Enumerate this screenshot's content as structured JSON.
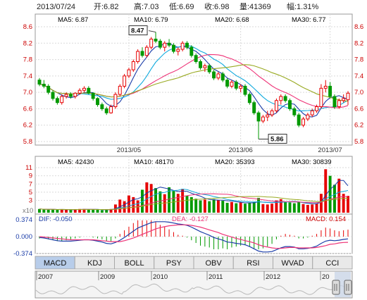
{
  "header": {
    "date": "2013/07/24",
    "open": "开:6.82",
    "high": "高:7.03",
    "low": "低:6.69",
    "close": "收:6.98",
    "volume": "量:41369",
    "change": "幅:1.31%"
  },
  "colors": {
    "up": "#e60000",
    "down": "#009900",
    "ma5": "#1a3ca8",
    "ma10": "#11aadd",
    "ma20": "#ee3377",
    "ma30": "#99aa22",
    "axis_price": "#cc0000",
    "axis_macd": "#1a3ca8"
  },
  "price_panel": {
    "legend": [
      {
        "label": "MA5: 6.87",
        "color": "#1a3ca8"
      },
      {
        "label": "MA10: 6.79",
        "color": "#11aadd"
      },
      {
        "label": "MA20: 6.68",
        "color": "#ee3377"
      },
      {
        "label": "MA30: 6.77",
        "color": "#99aa22"
      }
    ],
    "annotations": {
      "high": "8.47",
      "low": "5.86"
    }
  },
  "volume_panel": {
    "legend": [
      {
        "label": "MA5: 42430",
        "color": "#1a3ca8"
      },
      {
        "label": "MA10: 48170",
        "color": "#11aadd"
      },
      {
        "label": "MA20: 35393",
        "color": "#ee3377"
      },
      {
        "label": "MA30: 30839",
        "color": "#99aa22"
      }
    ]
  },
  "macd_panel": {
    "dif": "DIF: -0.050",
    "dea": "DEA: -0.127",
    "macd": "MACD: 0.154",
    "x_unit": "x10"
  },
  "tabs": [
    "MACD",
    "KDJ",
    "BOLL",
    "PSY",
    "OBV",
    "RSI",
    "WVAD",
    "CCI"
  ],
  "active_tab": "MACD",
  "navigator": {
    "years": [
      "2007",
      "2009",
      "2010",
      "2011",
      "2012",
      "20"
    ]
  },
  "chart_data": [
    {
      "type": "candlestick",
      "title": "",
      "xlabel": "",
      "ylabel": "",
      "x_tick_labels": [
        "2013/05",
        "2013/06",
        "2013/07"
      ],
      "y_tick_labels": [
        "8.6",
        "8.2",
        "7.8",
        "7.4",
        "7.0",
        "6.6",
        "6.2",
        "5.8"
      ],
      "ylim": [
        5.8,
        8.6
      ],
      "grid": true,
      "ohlc": [
        [
          7.3,
          7.35,
          7.15,
          7.2
        ],
        [
          7.2,
          7.3,
          7.1,
          7.15
        ],
        [
          7.15,
          7.2,
          6.95,
          7.0
        ],
        [
          7.0,
          7.05,
          6.8,
          6.85
        ],
        [
          6.85,
          6.9,
          6.7,
          6.75
        ],
        [
          6.75,
          6.95,
          6.7,
          6.9
        ],
        [
          6.9,
          7.0,
          6.85,
          6.95
        ],
        [
          6.95,
          7.0,
          6.85,
          6.9
        ],
        [
          6.9,
          7.0,
          6.85,
          6.98
        ],
        [
          6.98,
          7.1,
          6.95,
          7.05
        ],
        [
          7.05,
          7.15,
          7.0,
          7.1
        ],
        [
          7.1,
          7.15,
          6.95,
          6.98
        ],
        [
          6.98,
          7.0,
          6.8,
          6.85
        ],
        [
          6.85,
          6.88,
          6.65,
          6.7
        ],
        [
          6.7,
          6.75,
          6.55,
          6.6
        ],
        [
          6.6,
          6.65,
          6.45,
          6.5
        ],
        [
          6.5,
          6.7,
          6.48,
          6.65
        ],
        [
          6.65,
          7.0,
          6.6,
          6.95
        ],
        [
          6.95,
          7.2,
          6.9,
          7.15
        ],
        [
          7.15,
          7.45,
          7.1,
          7.4
        ],
        [
          7.4,
          7.6,
          7.35,
          7.55
        ],
        [
          7.55,
          7.8,
          7.5,
          7.75
        ],
        [
          7.75,
          8.05,
          7.7,
          8.0
        ],
        [
          8.0,
          8.1,
          7.85,
          7.9
        ],
        [
          7.9,
          8.15,
          7.85,
          8.1
        ],
        [
          8.1,
          8.35,
          8.05,
          8.3
        ],
        [
          8.3,
          8.47,
          8.2,
          8.25
        ],
        [
          8.25,
          8.3,
          8.05,
          8.1
        ],
        [
          8.1,
          8.25,
          8.0,
          8.2
        ],
        [
          8.2,
          8.3,
          8.1,
          8.15
        ],
        [
          8.15,
          8.2,
          7.95,
          8.0
        ],
        [
          8.0,
          8.1,
          7.9,
          8.05
        ],
        [
          8.05,
          8.25,
          8.0,
          8.2
        ],
        [
          8.2,
          8.25,
          8.05,
          8.1
        ],
        [
          8.1,
          8.15,
          7.85,
          7.9
        ],
        [
          7.9,
          7.95,
          7.7,
          7.75
        ],
        [
          7.75,
          7.8,
          7.55,
          7.6
        ],
        [
          7.6,
          7.7,
          7.5,
          7.65
        ],
        [
          7.65,
          7.7,
          7.45,
          7.5
        ],
        [
          7.5,
          7.55,
          7.3,
          7.35
        ],
        [
          7.35,
          7.5,
          7.3,
          7.45
        ],
        [
          7.45,
          7.5,
          7.25,
          7.3
        ],
        [
          7.3,
          7.35,
          7.1,
          7.15
        ],
        [
          7.15,
          7.3,
          7.1,
          7.25
        ],
        [
          7.25,
          7.3,
          7.05,
          7.1
        ],
        [
          7.1,
          7.2,
          7.0,
          7.15
        ],
        [
          7.15,
          7.2,
          6.9,
          6.95
        ],
        [
          6.95,
          7.0,
          6.7,
          6.75
        ],
        [
          6.75,
          6.8,
          6.45,
          6.5
        ],
        [
          6.5,
          6.55,
          5.86,
          6.3
        ],
        [
          6.3,
          6.45,
          6.25,
          6.4
        ],
        [
          6.4,
          6.55,
          6.3,
          6.45
        ],
        [
          6.45,
          6.6,
          6.4,
          6.55
        ],
        [
          6.55,
          6.85,
          6.5,
          6.8
        ],
        [
          6.8,
          6.95,
          6.7,
          6.9
        ],
        [
          6.9,
          6.95,
          6.75,
          6.8
        ],
        [
          6.8,
          6.85,
          6.55,
          6.6
        ],
        [
          6.6,
          6.65,
          6.4,
          6.45
        ],
        [
          6.45,
          6.5,
          6.15,
          6.2
        ],
        [
          6.2,
          6.4,
          6.15,
          6.35
        ],
        [
          6.35,
          6.5,
          6.3,
          6.45
        ],
        [
          6.45,
          6.6,
          6.4,
          6.55
        ],
        [
          6.55,
          6.7,
          6.5,
          6.65
        ],
        [
          6.65,
          7.2,
          6.6,
          7.1
        ],
        [
          7.1,
          7.3,
          7.0,
          7.15
        ],
        [
          7.15,
          7.25,
          6.85,
          6.9
        ],
        [
          6.9,
          6.95,
          6.6,
          6.65
        ],
        [
          6.65,
          6.85,
          6.6,
          6.8
        ],
        [
          6.8,
          6.95,
          6.75,
          6.85
        ],
        [
          6.82,
          7.03,
          6.69,
          6.98
        ]
      ]
    },
    {
      "type": "bar",
      "title": "",
      "y_tick_labels": [
        "11",
        "9",
        "7",
        "5",
        "3"
      ],
      "ylim": [
        0,
        11
      ],
      "grid": true,
      "volumes": [
        0.9,
        0.8,
        0.7,
        0.8,
        0.7,
        0.8,
        0.7,
        0.7,
        0.8,
        0.9,
        0.9,
        0.8,
        0.7,
        0.7,
        0.6,
        0.7,
        0.9,
        2.0,
        3.2,
        2.8,
        4.2,
        3.8,
        3.0,
        5.6,
        7.4,
        7.0,
        6.0,
        5.2,
        4.5,
        6.2,
        5.3,
        4.6,
        5.8,
        4.2,
        3.8,
        3.4,
        3.0,
        3.2,
        2.8,
        3.3,
        3.1,
        2.9,
        2.4,
        2.6,
        2.3,
        2.5,
        2.2,
        2.4,
        2.6,
        3.6,
        2.1,
        2.0,
        2.2,
        3.0,
        3.3,
        2.6,
        2.5,
        2.3,
        2.6,
        2.1,
        1.9,
        2.0,
        2.2,
        4.6,
        10.6,
        9.0,
        6.8,
        8.3,
        4.6,
        4.1
      ]
    },
    {
      "type": "bar",
      "title": "",
      "y_tick_labels": [
        "0.374",
        "0.000",
        "-0.374"
      ],
      "ylim": [
        -0.45,
        0.45
      ],
      "grid": true,
      "dif": [
        -0.02,
        -0.03,
        -0.05,
        -0.07,
        -0.09,
        -0.1,
        -0.1,
        -0.1,
        -0.09,
        -0.08,
        -0.07,
        -0.07,
        -0.08,
        -0.1,
        -0.12,
        -0.15,
        -0.16,
        -0.13,
        -0.08,
        -0.02,
        0.05,
        0.12,
        0.19,
        0.23,
        0.27,
        0.31,
        0.33,
        0.33,
        0.33,
        0.32,
        0.3,
        0.28,
        0.27,
        0.25,
        0.21,
        0.16,
        0.11,
        0.07,
        0.03,
        -0.02,
        -0.05,
        -0.08,
        -0.12,
        -0.13,
        -0.15,
        -0.16,
        -0.18,
        -0.22,
        -0.27,
        -0.32,
        -0.34,
        -0.34,
        -0.33,
        -0.29,
        -0.25,
        -0.22,
        -0.22,
        -0.23,
        -0.27,
        -0.27,
        -0.26,
        -0.24,
        -0.21,
        -0.15,
        -0.1,
        -0.08,
        -0.09,
        -0.08,
        -0.06,
        -0.05
      ],
      "dea": [
        0.0,
        -0.01,
        -0.02,
        -0.03,
        -0.04,
        -0.05,
        -0.06,
        -0.07,
        -0.07,
        -0.07,
        -0.07,
        -0.07,
        -0.07,
        -0.08,
        -0.09,
        -0.1,
        -0.11,
        -0.11,
        -0.11,
        -0.09,
        -0.06,
        -0.03,
        0.01,
        0.05,
        0.09,
        0.13,
        0.17,
        0.2,
        0.22,
        0.24,
        0.25,
        0.26,
        0.26,
        0.26,
        0.25,
        0.23,
        0.21,
        0.18,
        0.15,
        0.12,
        0.09,
        0.05,
        0.02,
        -0.01,
        -0.04,
        -0.06,
        -0.09,
        -0.11,
        -0.14,
        -0.18,
        -0.21,
        -0.23,
        -0.25,
        -0.26,
        -0.26,
        -0.25,
        -0.24,
        -0.24,
        -0.25,
        -0.25,
        -0.25,
        -0.25,
        -0.24,
        -0.22,
        -0.2,
        -0.17,
        -0.16,
        -0.14,
        -0.13,
        -0.127
      ],
      "macd": [
        -0.04,
        -0.04,
        -0.06,
        -0.08,
        -0.1,
        -0.1,
        -0.08,
        -0.06,
        -0.04,
        -0.02,
        0.0,
        0.0,
        -0.02,
        -0.04,
        -0.06,
        -0.1,
        -0.1,
        -0.04,
        0.06,
        0.14,
        0.22,
        0.3,
        0.36,
        0.36,
        0.36,
        0.36,
        0.32,
        0.26,
        0.22,
        0.16,
        0.1,
        0.04,
        0.02,
        -0.02,
        -0.08,
        -0.14,
        -0.2,
        -0.22,
        -0.24,
        -0.28,
        -0.28,
        -0.26,
        -0.28,
        -0.24,
        -0.22,
        -0.2,
        -0.18,
        -0.22,
        -0.26,
        -0.28,
        -0.26,
        -0.22,
        -0.16,
        -0.06,
        0.02,
        0.06,
        0.04,
        0.02,
        -0.04,
        -0.04,
        -0.02,
        0.02,
        0.06,
        0.14,
        0.2,
        0.18,
        0.14,
        0.12,
        0.14,
        0.154
      ]
    }
  ]
}
